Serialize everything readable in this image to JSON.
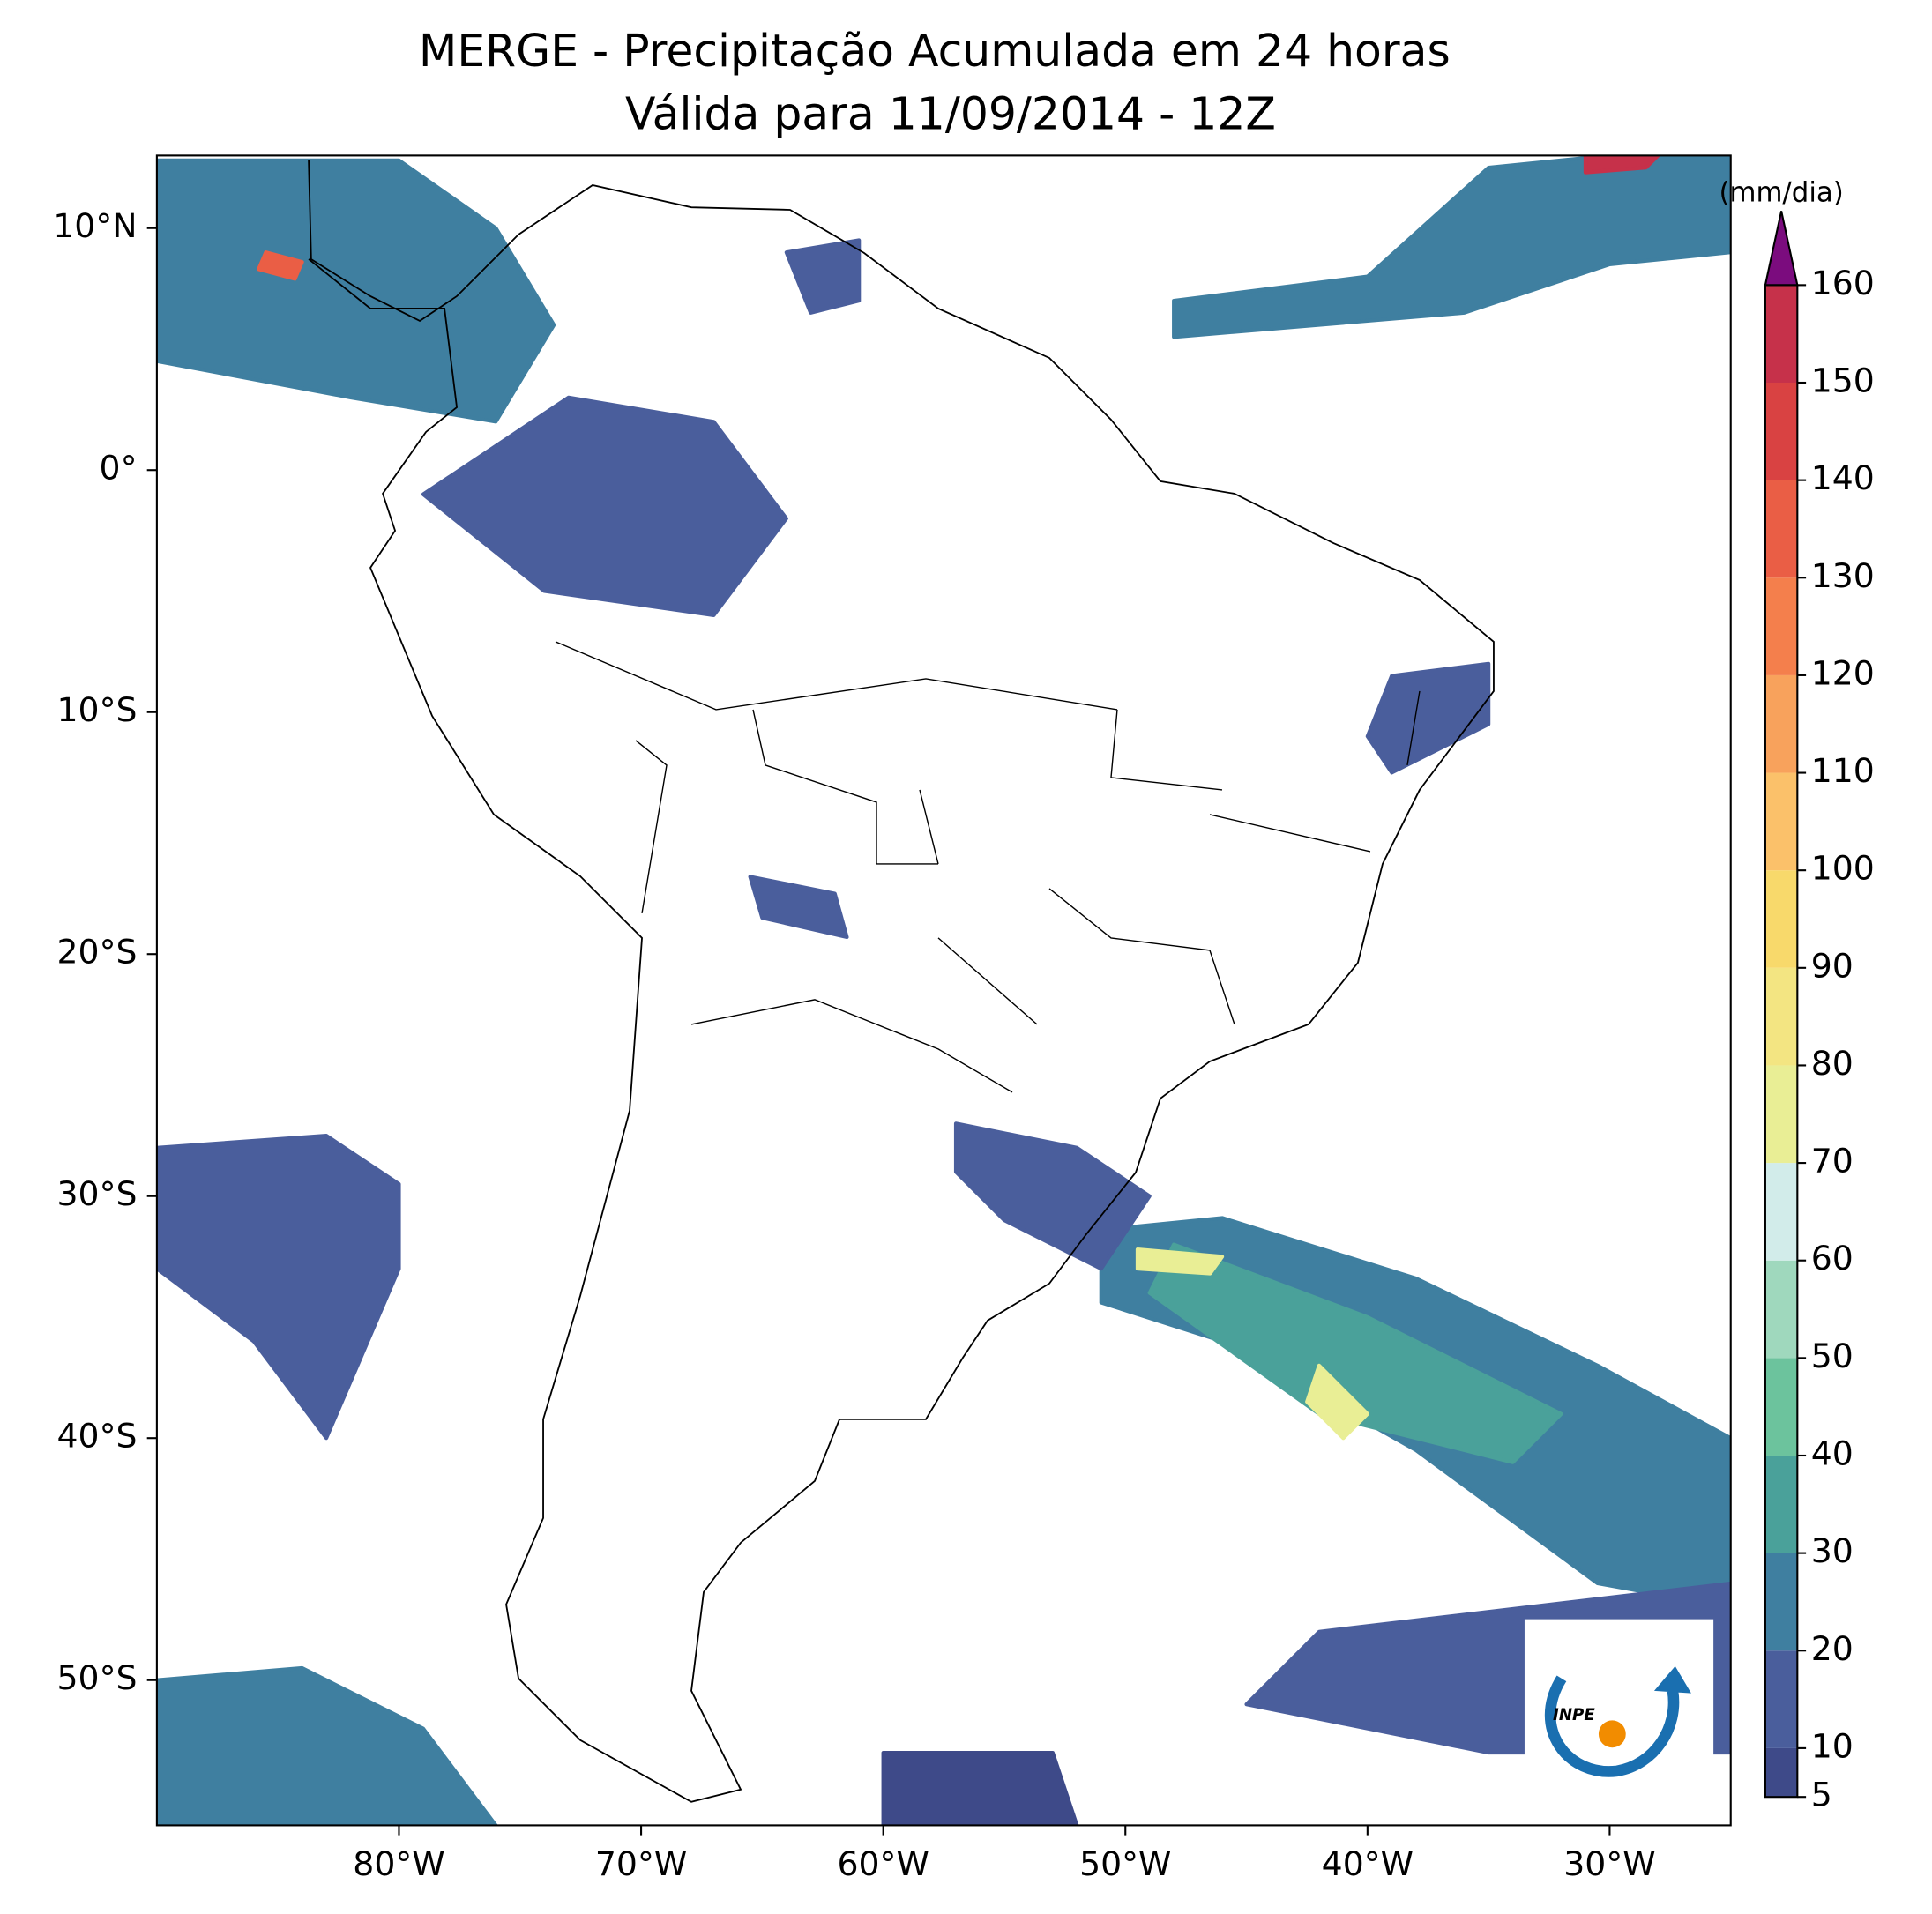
{
  "chart_data": {
    "type": "map",
    "title": "MERGE - Precipitação Acumulada em 24 horas",
    "subtitle": "Válida para 11/09/2014 - 12Z",
    "xlim": [
      -90,
      -25
    ],
    "ylim": [
      -56,
      13
    ],
    "xticks": [
      {
        "value": -80,
        "label": "80°W"
      },
      {
        "value": -70,
        "label": "70°W"
      },
      {
        "value": -60,
        "label": "60°W"
      },
      {
        "value": -50,
        "label": "50°W"
      },
      {
        "value": -40,
        "label": "40°W"
      },
      {
        "value": -30,
        "label": "30°W"
      }
    ],
    "yticks": [
      {
        "value": 10,
        "label": "10°N"
      },
      {
        "value": 0,
        "label": "0°"
      },
      {
        "value": -10,
        "label": "10°S"
      },
      {
        "value": -20,
        "label": "20°S"
      },
      {
        "value": -30,
        "label": "30°S"
      },
      {
        "value": -40,
        "label": "40°S"
      },
      {
        "value": -50,
        "label": "50°S"
      }
    ],
    "colorbar": {
      "label": "(mm/dia)",
      "ticks": [
        5,
        10,
        20,
        30,
        40,
        50,
        60,
        70,
        80,
        90,
        100,
        110,
        120,
        130,
        140,
        150,
        160
      ],
      "colors": [
        "#3e4a89",
        "#4a5e9c",
        "#3f7fa0",
        "#4aa19a",
        "#6cc39d",
        "#9fd8bd",
        "#d2ecea",
        "#e9ee95",
        "#f3e582",
        "#f8d96b",
        "#fbc16a",
        "#f8a25c",
        "#f47f4c",
        "#ea5e45",
        "#d94242",
        "#c6314a",
        "#a81d4c"
      ],
      "extend_color": "#7b0c7e"
    },
    "areas": [
      {
        "value": 20,
        "points": [
          [
            -51,
            -31.4
          ],
          [
            -46,
            -30.9
          ],
          [
            -38,
            -33.4
          ],
          [
            -30.5,
            -37
          ],
          [
            -25,
            -40
          ],
          [
            -25,
            -47
          ],
          [
            -30.5,
            -46
          ],
          [
            -38,
            -40.5
          ],
          [
            -46,
            -36
          ],
          [
            -51,
            -34.4
          ]
        ]
      },
      {
        "value": 35,
        "points": [
          [
            -48,
            -32
          ],
          [
            -40,
            -35
          ],
          [
            -32,
            -39
          ],
          [
            -34,
            -41
          ],
          [
            -42,
            -39
          ],
          [
            -49,
            -34
          ]
        ]
      },
      {
        "value": 70,
        "points": [
          [
            -49.5,
            -32.2
          ],
          [
            -46,
            -32.5
          ],
          [
            -46.5,
            -33.2
          ],
          [
            -49.5,
            -33
          ]
        ]
      },
      {
        "value": 75,
        "points": [
          [
            -42,
            -37
          ],
          [
            -40,
            -39
          ],
          [
            -41,
            -40
          ],
          [
            -42.5,
            -38.5
          ]
        ]
      },
      {
        "value": 15,
        "points": [
          [
            -57,
            -27
          ],
          [
            -52,
            -28
          ],
          [
            -49,
            -30
          ],
          [
            -51,
            -33
          ],
          [
            -55,
            -31
          ],
          [
            -57,
            -29
          ]
        ]
      },
      {
        "value": 12,
        "points": [
          [
            -90,
            -28
          ],
          [
            -83,
            -27.5
          ],
          [
            -80,
            -29.5
          ],
          [
            -80,
            -33
          ],
          [
            -83,
            -40
          ],
          [
            -86,
            -36
          ],
          [
            -90,
            -33
          ]
        ]
      },
      {
        "value": 22,
        "points": [
          [
            -90,
            -50
          ],
          [
            -84,
            -49.5
          ],
          [
            -79,
            -52
          ],
          [
            -76,
            -56
          ],
          [
            -90,
            -56
          ]
        ]
      },
      {
        "value": 25,
        "points": [
          [
            -90,
            12.8
          ],
          [
            -80,
            12.8
          ],
          [
            -76,
            10
          ],
          [
            -73.6,
            6
          ],
          [
            -76,
            2
          ],
          [
            -82,
            3
          ],
          [
            -90,
            4.5
          ]
        ]
      },
      {
        "value": 130,
        "points": [
          [
            -85.5,
            9
          ],
          [
            -84,
            8.6
          ],
          [
            -84.3,
            7.9
          ],
          [
            -85.8,
            8.3
          ]
        ]
      },
      {
        "value": 15,
        "points": [
          [
            -79,
            -1
          ],
          [
            -73,
            3
          ],
          [
            -67,
            2
          ],
          [
            -64,
            -2
          ],
          [
            -67,
            -6
          ],
          [
            -74,
            -5
          ]
        ]
      },
      {
        "value": 10,
        "points": [
          [
            -64,
            9
          ],
          [
            -61,
            9.5
          ],
          [
            -61,
            7
          ],
          [
            -63,
            6.5
          ]
        ]
      },
      {
        "value": 12,
        "points": [
          [
            -39,
            -8.5
          ],
          [
            -35,
            -8
          ],
          [
            -35,
            -10.5
          ],
          [
            -39,
            -12.5
          ],
          [
            -40,
            -11
          ]
        ]
      },
      {
        "value": 20,
        "points": [
          [
            -48,
            7
          ],
          [
            -40,
            8
          ],
          [
            -35,
            12.5
          ],
          [
            -30,
            13
          ],
          [
            -25,
            13
          ],
          [
            -25,
            9
          ],
          [
            -30,
            8.5
          ],
          [
            -36,
            6.5
          ],
          [
            -48,
            5.5
          ]
        ]
      },
      {
        "value": 150,
        "points": [
          [
            -31,
            13
          ],
          [
            -28,
            13
          ],
          [
            -28.5,
            12.5
          ],
          [
            -31,
            12.3
          ]
        ]
      },
      {
        "value": 10,
        "points": [
          [
            -65.5,
            -16.8
          ],
          [
            -62,
            -17.5
          ],
          [
            -61.5,
            -19.3
          ],
          [
            -65,
            -18.5
          ]
        ]
      },
      {
        "value": 10,
        "points": [
          [
            -42,
            -48
          ],
          [
            -25,
            -46
          ],
          [
            -25,
            -53
          ],
          [
            -35,
            -53
          ],
          [
            -45,
            -51
          ]
        ]
      },
      {
        "value": 8,
        "points": [
          [
            -60,
            -53
          ],
          [
            -53,
            -53
          ],
          [
            -52,
            -56
          ],
          [
            -60,
            -56
          ]
        ]
      }
    ],
    "logo_text": "INPE"
  }
}
